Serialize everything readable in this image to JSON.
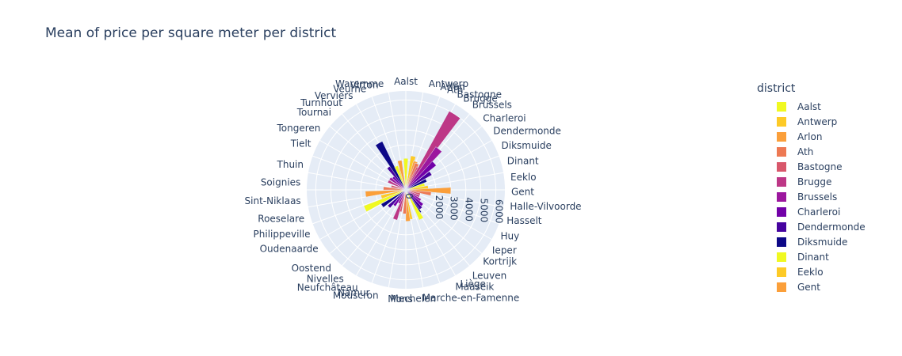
{
  "chart_data": {
    "type": "barpolar",
    "title": "Mean of price per square meter per district",
    "legend_title": "district",
    "radial_ticks": [
      "0",
      "2000",
      "3000",
      "4000",
      "5000",
      "6000"
    ],
    "radial_tick_values": [
      0,
      2000,
      3000,
      4000,
      5000,
      6000
    ],
    "radial_max": 6600,
    "colors": [
      "#f0f921",
      "#fdca26",
      "#fb9f3a",
      "#ed7953",
      "#d8576b",
      "#bd3786",
      "#9c179e",
      "#7201a8",
      "#46039f",
      "#0d0887"
    ],
    "districts": [
      "Aalst",
      "Antwerp",
      "Arlon",
      "Ath",
      "Bastogne",
      "Brugge",
      "Brussels",
      "Charleroi",
      "Dendermonde",
      "Diksmuide",
      "Dinant",
      "Eeklo",
      "Gent",
      "Halle-Vilvoorde",
      "Hasselt",
      "Huy",
      "Ieper",
      "Kortrijk",
      "Leuven",
      "Liège",
      "Maaseik",
      "Marche-en-Famenne",
      "Mechelen",
      "Mons",
      "Mouscron",
      "Namur",
      "Neufchâteau",
      "Nivelles",
      "Oostend",
      "Oudenaarde",
      "Philippeville",
      "Roeselare",
      "Sint-Niklaas",
      "Soignies",
      "Thuin",
      "Tielt",
      "Tongeren",
      "Tournai",
      "Turnhout",
      "Verviers",
      "Veurne",
      "Virton",
      "Waremme"
    ],
    "angles": [
      0,
      12.5,
      19,
      23,
      29,
      33,
      39,
      47,
      56,
      65,
      74,
      83,
      91,
      99,
      107,
      116,
      125,
      133,
      141,
      149,
      152,
      171,
      176,
      183,
      195,
      200,
      207,
      216,
      225,
      236,
      245,
      254,
      264,
      274,
      284,
      296,
      306,
      315,
      323,
      330,
      338,
      345,
      348
    ],
    "values": [
      2100,
      2300,
      2000,
      1900,
      1700,
      6000,
      3500,
      2600,
      2000,
      1500,
      1300,
      1500,
      3000,
      1700,
      1000,
      1000,
      1200,
      1500,
      1600,
      1800,
      2200,
      2000,
      2100,
      1600,
      1500,
      2100,
      1000,
      1300,
      1600,
      1900,
      3000,
      1700,
      2700,
      1500,
      1000,
      1300,
      1300,
      1200,
      1900,
      3600,
      1700,
      1500,
      2000
    ],
    "legend_entries": [
      "Aalst",
      "Antwerp",
      "Arlon",
      "Ath",
      "Bastogne",
      "Brugge",
      "Brussels",
      "Charleroi",
      "Dendermonde",
      "Diksmuide",
      "Dinant",
      "Eeklo",
      "Gent"
    ]
  }
}
